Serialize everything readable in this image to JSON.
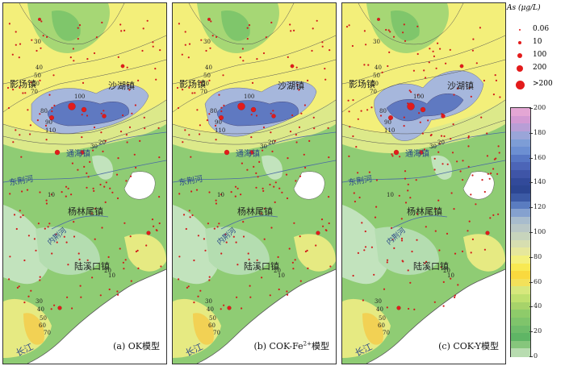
{
  "panels": [
    {
      "label": "(a) OK模型",
      "variant": "ok"
    },
    {
      "label_prefix": "(b) COK-Fe",
      "label_sup": "2+",
      "label_suffix": "模型",
      "variant": "fe"
    },
    {
      "label": "(c) COK-Y模型",
      "variant": "y"
    }
  ],
  "map_labels": {
    "town_yingchang": "影场镇",
    "town_shahu": "沙湖镇",
    "town_yanglinwei": "杨林尾镇",
    "town_lukou": "陆溪口镇",
    "town_mid": "通海镇",
    "canal_east": "东荆河",
    "canal_north": "东荆河",
    "river_yangtze": "长江",
    "river_mid": "内荆河"
  },
  "contour_labels": {
    "north": [
      "30",
      "40",
      "50",
      "60",
      "70",
      "80",
      "90",
      "100",
      "110"
    ],
    "center": [
      "30",
      "20",
      "10"
    ],
    "south": [
      "10",
      "20",
      "30",
      "40",
      "50",
      "60",
      "70"
    ]
  },
  "legend": {
    "title": "As (μg/L)",
    "sizes": [
      {
        "label": "0.06",
        "size": 2
      },
      {
        "label": "10",
        "size": 4
      },
      {
        "label": "100",
        "size": 6
      },
      {
        "label": "200",
        "size": 8
      },
      {
        "label": ">200",
        "size": 11
      }
    ],
    "colorbar_ticks": [
      "200",
      "180",
      "160",
      "140",
      "120",
      "100",
      "80",
      "60",
      "40",
      "20",
      "0"
    ],
    "colorbar_colors": [
      "#e4a6d4",
      "#d39ad3",
      "#b89ed6",
      "#9aa5d8",
      "#7d9dd6",
      "#6c8fd2",
      "#5777c4",
      "#4c65b7",
      "#3f55a7",
      "#324a9a",
      "#2c4692",
      "#3c5aa5",
      "#5a7cc0",
      "#85a1cf",
      "#a8bccd",
      "#b9c7c6",
      "#c7d4bc",
      "#d7deb0",
      "#e6e79c",
      "#f3f07c",
      "#f8e952",
      "#f9d93e",
      "#f2e15a",
      "#d7e87c",
      "#bfe06f",
      "#a7d36a",
      "#8ecb6a",
      "#7fc46b",
      "#6fbc6a",
      "#5fb565",
      "#86c67c",
      "#b8dcb0"
    ]
  }
}
